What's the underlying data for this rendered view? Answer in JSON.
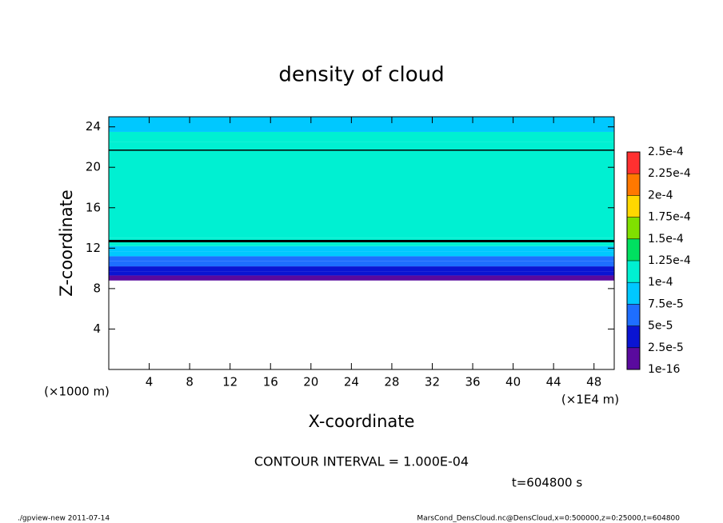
{
  "chart_data": {
    "type": "profile-heatmap",
    "title": "density of cloud",
    "x_label": "X-coordinate",
    "y_label": "Z-coordinate",
    "x_unit": "(×1E4 m)",
    "y_unit": "(×1000 m)",
    "xlim": [
      0,
      50
    ],
    "xticks": [
      4,
      8,
      12,
      16,
      20,
      24,
      28,
      32,
      36,
      40,
      44,
      48
    ],
    "ylim": [
      0,
      25
    ],
    "yticks": [
      4,
      8,
      12,
      16,
      20,
      24
    ],
    "z_edges": [
      8.8,
      9.3,
      9.7,
      10.2,
      10.7,
      11.2,
      11.7,
      12.2,
      13,
      22.5,
      23.5,
      25
    ],
    "density": [
      1e-05,
      3e-05,
      4.5e-05,
      6e-05,
      7e-05,
      8e-05,
      9e-05,
      0.00011,
      0.000115,
      0.000105,
      9e-05
    ],
    "contour_lines_z": [
      12.7,
      21.7
    ],
    "colorbar": {
      "ticks": [
        {
          "value": 1e-16,
          "label": "1e-16"
        },
        {
          "value": 2.5e-05,
          "label": "2.5e-5"
        },
        {
          "value": 5e-05,
          "label": "5e-5"
        },
        {
          "value": 7.5e-05,
          "label": "7.5e-5"
        },
        {
          "value": 0.0001,
          "label": "1e-4"
        },
        {
          "value": 0.000125,
          "label": "1.25e-4"
        },
        {
          "value": 0.00015,
          "label": "1.5e-4"
        },
        {
          "value": 0.000175,
          "label": "1.75e-4"
        },
        {
          "value": 0.0002,
          "label": "2e-4"
        },
        {
          "value": 0.000225,
          "label": "2.25e-4"
        },
        {
          "value": 0.00025,
          "label": "2.5e-4"
        }
      ],
      "colors": [
        "#5a0a9e",
        "#0a14d2",
        "#1e6eff",
        "#00c8ff",
        "#00f0d2",
        "#00e060",
        "#80e000",
        "#ffd800",
        "#ff7800",
        "#ff3030",
        "#ff9090"
      ]
    },
    "annotation": "CONTOUR INTERVAL = 1.000E-04",
    "time_label": "t=604800 s",
    "footer_left": "./gpview-new  2011-07-14",
    "footer_right": "MarsCond_DensCloud.nc@DensCloud,x=0:500000,z=0:25000,t=604800"
  }
}
